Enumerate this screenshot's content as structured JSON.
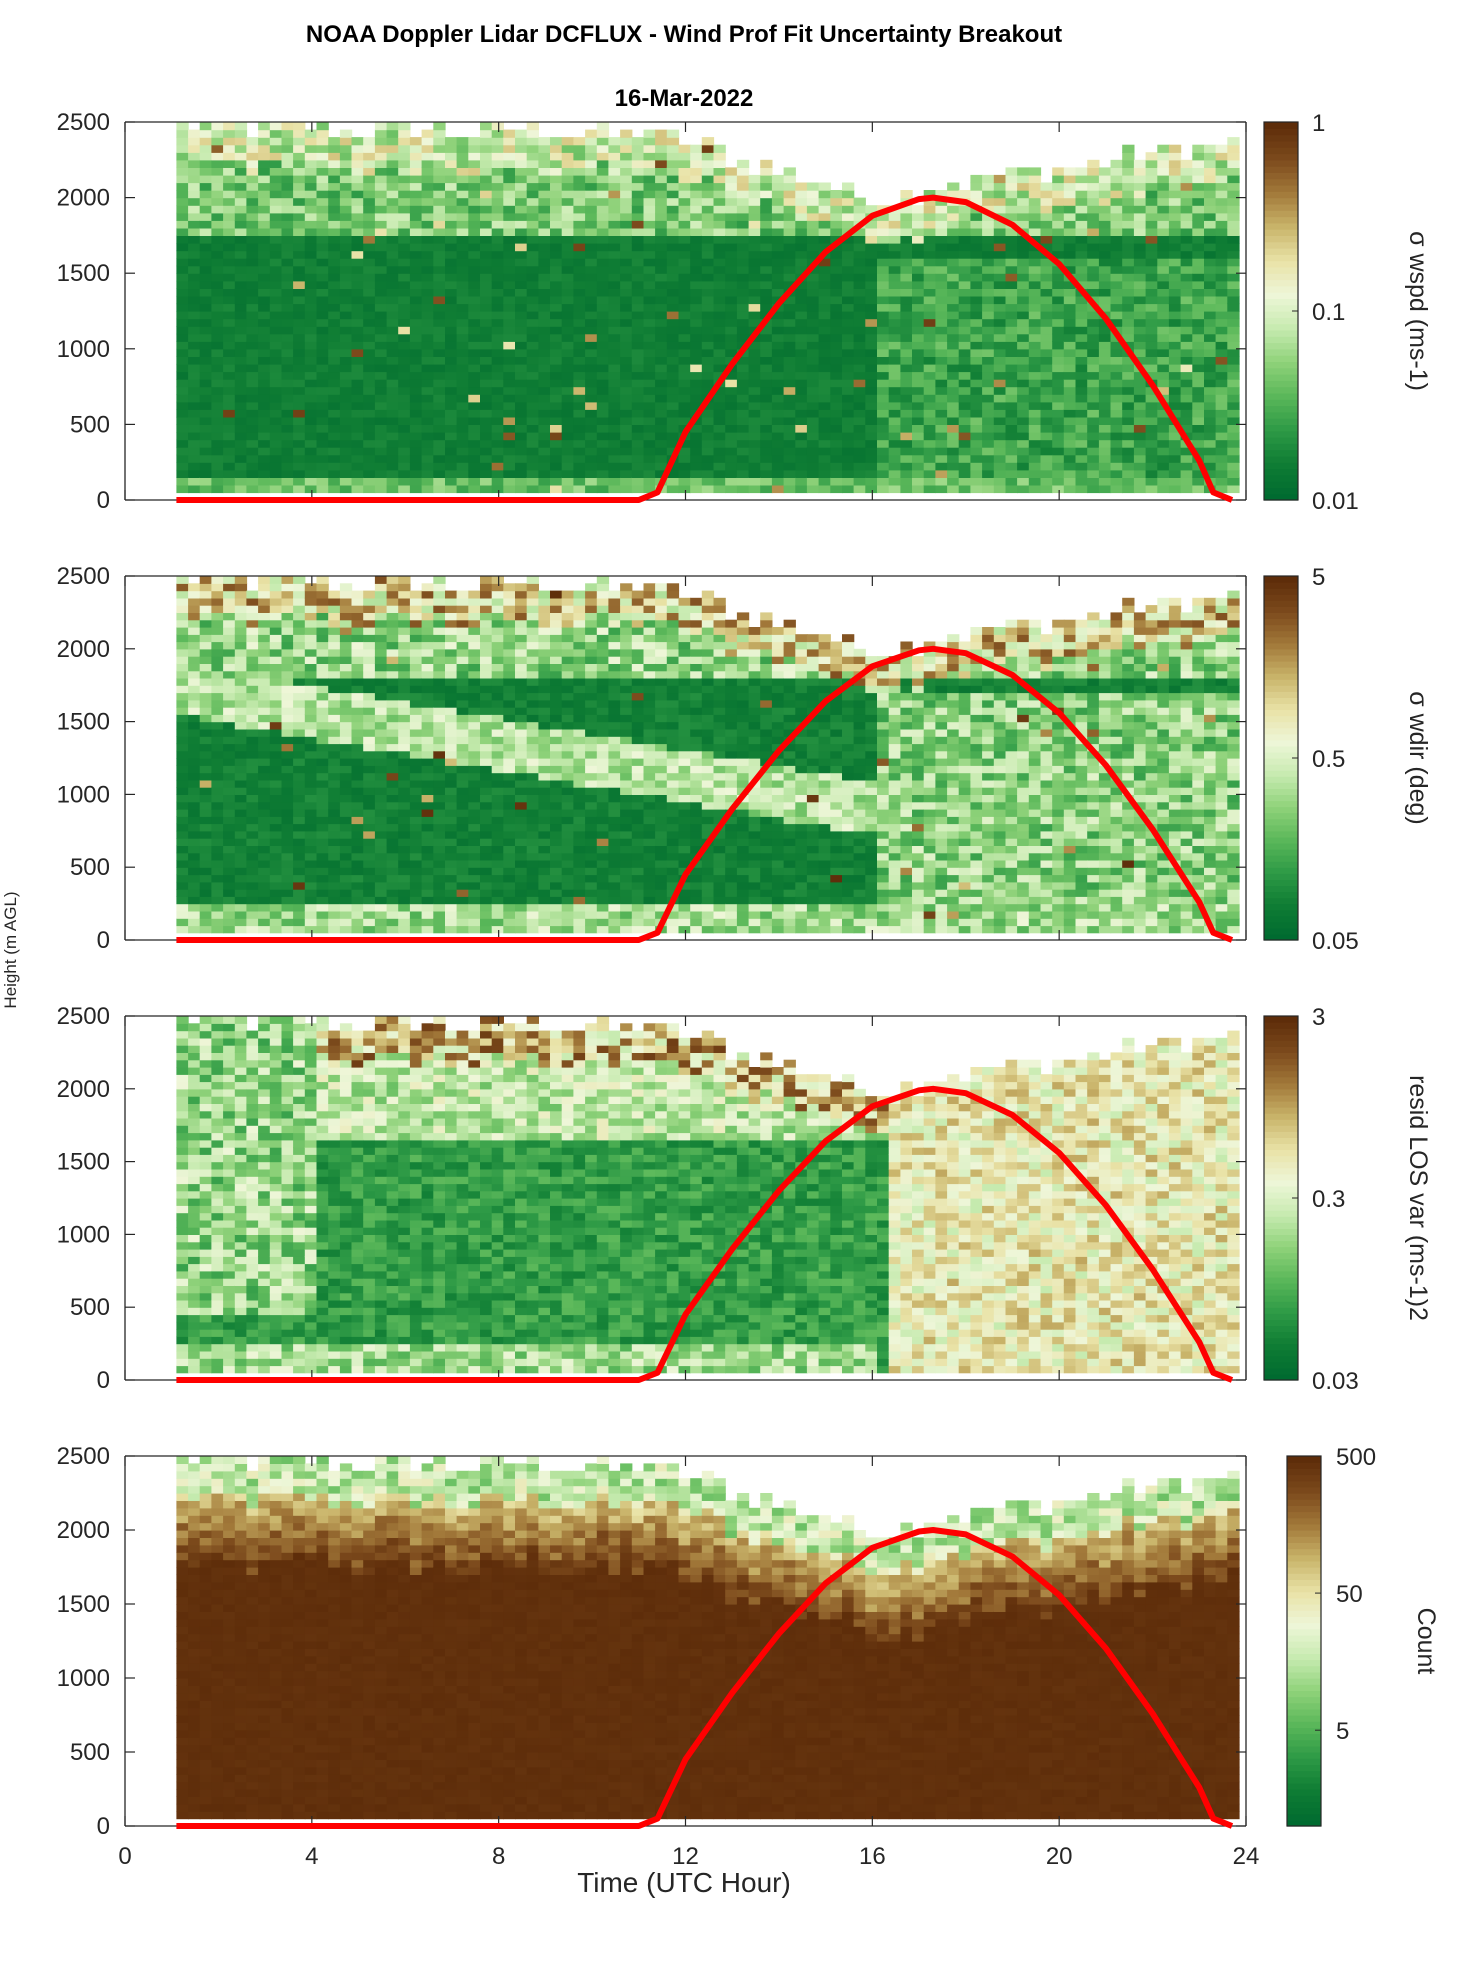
{
  "figure": {
    "title": "NOAA Doppler Lidar DCFLUX - Wind Prof Fit Uncertainty Breakout",
    "date": "16-Mar-2022",
    "ylabel": "Height (m AGL)",
    "xlabel": "Time (UTC Hour)"
  },
  "colors": {
    "curve": "#ff0000",
    "colormap": [
      "#006b30",
      "#0f7d34",
      "#2e9a46",
      "#5bb85a",
      "#8fd27a",
      "#c7ebb0",
      "#eef6d8",
      "#e9e2a6",
      "#c9b46a",
      "#a2793a",
      "#7c4a1c",
      "#5e2d0a"
    ],
    "count_fill": "#652d00"
  },
  "chart_data": [
    {
      "type": "heatmap",
      "panel": "wspd",
      "colorbar_label": "σ wspd (ms-1)",
      "colorbar_scale": "log",
      "colorbar_range": [
        0.01,
        1
      ],
      "colorbar_ticks": [
        "1",
        "0.1",
        "0.01"
      ],
      "xlim": [
        0,
        24
      ],
      "ylim": [
        0,
        2500
      ],
      "x_ticks": [
        "0",
        "4",
        "8",
        "12",
        "16",
        "20",
        "24"
      ],
      "y_ticks": [
        "0",
        "500",
        "1000",
        "1500",
        "2000",
        "2500"
      ],
      "data_x_range": [
        1.1,
        23.7
      ],
      "data_top_approx_m": [
        2450,
        2450,
        2400,
        2100,
        1950,
        2100,
        2350
      ],
      "typical_value": 0.02
    },
    {
      "type": "heatmap",
      "panel": "wdir",
      "colorbar_label": "σ wdir (deg)",
      "colorbar_scale": "log",
      "colorbar_range": [
        0.05,
        5
      ],
      "colorbar_ticks": [
        "5",
        "0.5",
        "0.05"
      ],
      "xlim": [
        0,
        24
      ],
      "ylim": [
        0,
        2500
      ],
      "x_ticks": [
        "0",
        "4",
        "8",
        "12",
        "16",
        "20",
        "24"
      ],
      "y_ticks": [
        "0",
        "500",
        "1000",
        "1500",
        "2000",
        "2500"
      ],
      "typical_value": 0.1
    },
    {
      "type": "heatmap",
      "panel": "resid",
      "colorbar_label": "resid LOS var (ms-1)2",
      "colorbar_scale": "log",
      "colorbar_range": [
        0.03,
        3
      ],
      "colorbar_ticks": [
        "3",
        "0.3",
        "0.03"
      ],
      "xlim": [
        0,
        24
      ],
      "ylim": [
        0,
        2500
      ],
      "x_ticks": [
        "0",
        "4",
        "8",
        "12",
        "16",
        "20",
        "24"
      ],
      "y_ticks": [
        "0",
        "500",
        "1000",
        "1500",
        "2000",
        "2500"
      ],
      "typical_value": 0.1
    },
    {
      "type": "heatmap",
      "panel": "count",
      "colorbar_label": "Count",
      "colorbar_scale": "log",
      "colorbar_range": [
        1,
        500
      ],
      "colorbar_ticks": [
        "500",
        "50",
        "5"
      ],
      "xlim": [
        0,
        24
      ],
      "ylim": [
        0,
        2500
      ],
      "x_ticks": [
        "0",
        "4",
        "8",
        "12",
        "16",
        "20",
        "24"
      ],
      "y_ticks": [
        "0",
        "500",
        "1000",
        "1500",
        "2000",
        "2500"
      ],
      "x_axis_label": "Time (UTC Hour)",
      "typical_value": 500
    },
    {
      "type": "line",
      "series_role": "overlay curve (all panels)",
      "x": [
        1.1,
        11.0,
        11.4,
        12.0,
        13.0,
        14.0,
        15.0,
        16.0,
        17.0,
        17.3,
        18.0,
        19.0,
        20.0,
        21.0,
        22.0,
        23.0,
        23.3,
        23.7
      ],
      "y": [
        0,
        0,
        50,
        450,
        900,
        1300,
        1640,
        1880,
        1990,
        2000,
        1970,
        1820,
        1560,
        1200,
        760,
        260,
        50,
        0
      ]
    }
  ]
}
